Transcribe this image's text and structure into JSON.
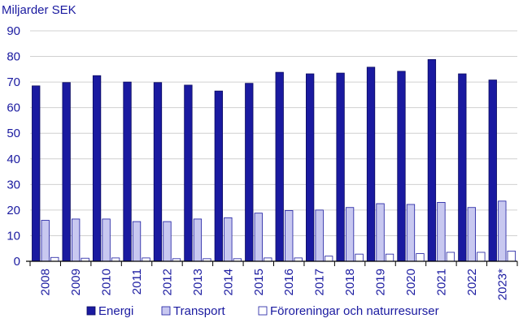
{
  "chart_data": {
    "type": "bar",
    "ylabel": "Miljarder SEK",
    "ylim": [
      0,
      90
    ],
    "yticks": [
      0,
      10,
      20,
      30,
      40,
      50,
      60,
      70,
      80,
      90
    ],
    "grid": true,
    "legend_position": "bottom",
    "categories": [
      "2008",
      "2009",
      "2010",
      "2011",
      "2012",
      "2013",
      "2014",
      "2015",
      "2016",
      "2017",
      "2018",
      "2019",
      "2020",
      "2021",
      "2022",
      "2023*"
    ],
    "series": [
      {
        "name": "Energi",
        "color": "#1a1aa0",
        "stroke": "#0a0a60",
        "values": [
          68.5,
          69.8,
          72.5,
          70.0,
          69.8,
          68.8,
          66.5,
          69.5,
          73.8,
          73.2,
          73.5,
          75.8,
          74.2,
          78.8,
          73.2,
          70.8
        ]
      },
      {
        "name": "Transport",
        "color": "#c8c8f0",
        "stroke": "#1a1aa0",
        "values": [
          16.0,
          16.5,
          16.5,
          15.5,
          15.5,
          16.5,
          17.0,
          18.8,
          19.8,
          20.0,
          21.0,
          22.5,
          22.2,
          23.0,
          21.0,
          23.5
        ]
      },
      {
        "name": "Föroreningar och naturresurser",
        "color": "#ffffff",
        "stroke": "#1a1aa0",
        "values": [
          1.5,
          1.2,
          1.3,
          1.3,
          1.0,
          1.0,
          1.0,
          1.3,
          1.3,
          2.0,
          2.8,
          2.8,
          3.0,
          3.5,
          3.5,
          4.0
        ]
      }
    ]
  }
}
